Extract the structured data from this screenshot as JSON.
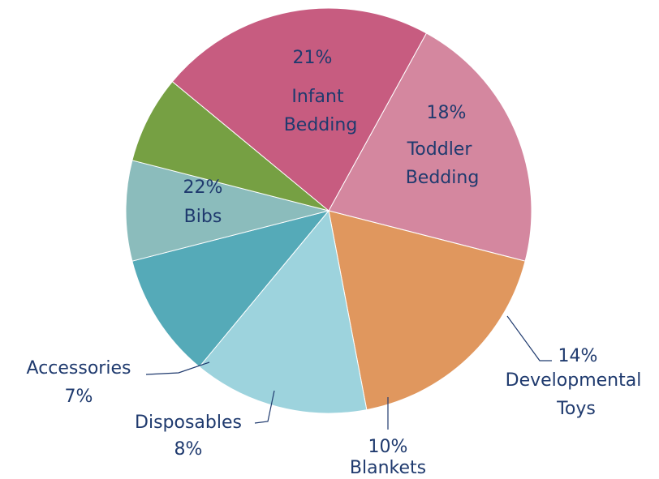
{
  "chart_data": {
    "type": "pie",
    "categories": [
      "Infant Bedding",
      "Toddler Bedding",
      "Developmental Toys",
      "Blankets",
      "Disposables",
      "Accessories",
      "Bibs"
    ],
    "values": [
      21,
      18,
      14,
      10,
      8,
      7,
      22
    ],
    "value_labels": [
      "21%",
      "18%",
      "14%",
      "10%",
      "8%",
      "7%",
      "22%"
    ],
    "colors": [
      "#d4879f",
      "#e0975e",
      "#9dd3dd",
      "#55aab8",
      "#8bbcbc",
      "#76a043",
      "#c75c80"
    ]
  }
}
